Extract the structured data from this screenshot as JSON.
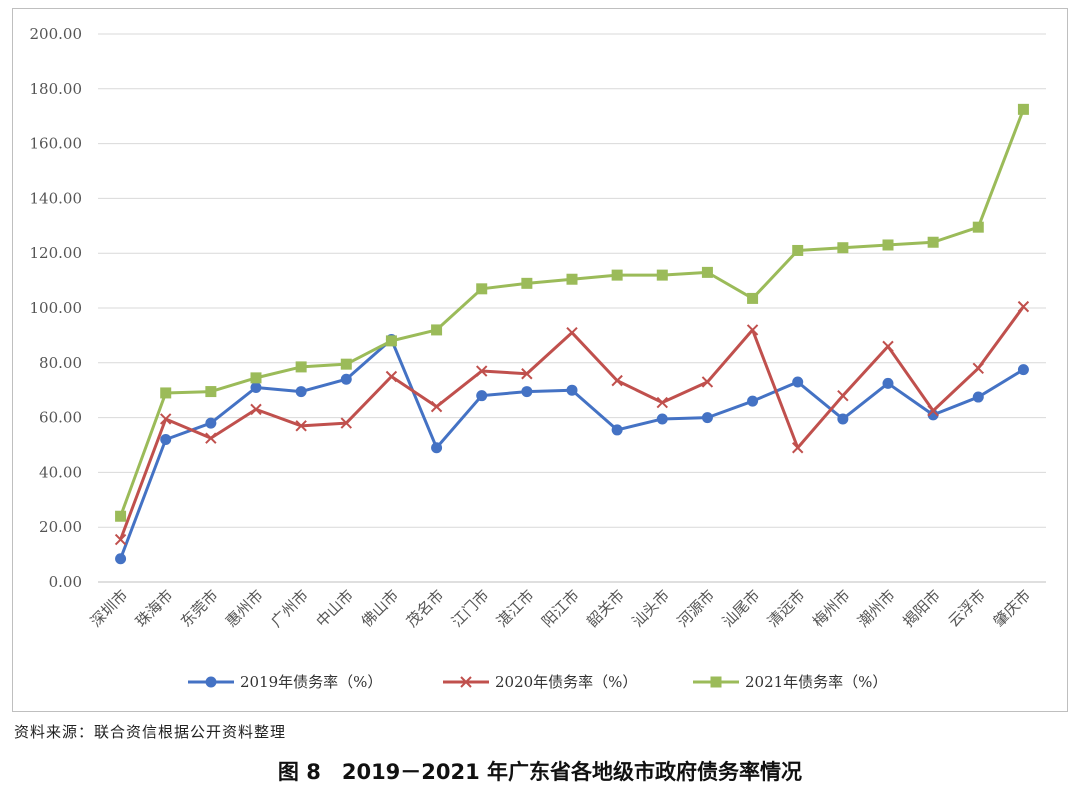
{
  "chart_data": {
    "type": "line",
    "categories": [
      "深圳市",
      "珠海市",
      "东莞市",
      "惠州市",
      "广州市",
      "中山市",
      "佛山市",
      "茂名市",
      "江门市",
      "湛江市",
      "阳江市",
      "韶关市",
      "汕头市",
      "河源市",
      "汕尾市",
      "清远市",
      "梅州市",
      "潮州市",
      "揭阳市",
      "云浮市",
      "肇庆市"
    ],
    "series": [
      {
        "name": "2019年债务率（%）",
        "color": "#4472c4",
        "marker": "circle",
        "values": [
          8.5,
          52,
          58,
          71,
          69.5,
          74,
          88.5,
          49,
          68,
          69.5,
          70,
          55.5,
          59.5,
          60,
          66,
          73,
          59.5,
          72.5,
          61,
          67.5,
          77.5
        ]
      },
      {
        "name": "2020年债务率（%）",
        "color": "#c0504d",
        "marker": "x",
        "values": [
          15.5,
          59.5,
          52.5,
          63,
          57,
          58,
          75,
          64,
          77,
          76,
          91,
          73.5,
          65.5,
          73,
          92,
          49,
          68,
          86,
          62.5,
          78,
          100.5
        ]
      },
      {
        "name": "2021年债务率（%）",
        "color": "#9bbb59",
        "marker": "square",
        "values": [
          24,
          69,
          69.5,
          74.5,
          78.5,
          79.5,
          88,
          92,
          107,
          109,
          110.5,
          112,
          112,
          113,
          103.5,
          121,
          122,
          123,
          124,
          129.5,
          172.5
        ]
      }
    ],
    "ylim": [
      0,
      200
    ],
    "yticks": [
      "0.00",
      "20.00",
      "40.00",
      "60.00",
      "80.00",
      "100.00",
      "120.00",
      "140.00",
      "160.00",
      "180.00",
      "200.00"
    ],
    "grid": true,
    "legend": "bottom"
  },
  "source_note": "资料来源：联合资信根据公开资料整理",
  "caption": "图 8　2019－2021 年广东省各地级市政府债务率情况"
}
